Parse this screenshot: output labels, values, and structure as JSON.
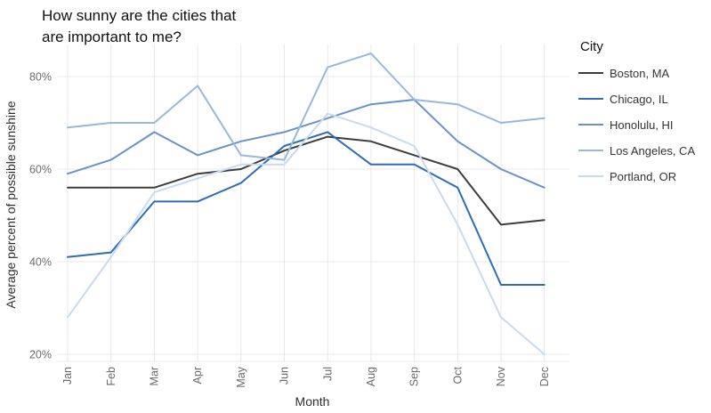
{
  "title": {
    "line1": "How sunny are the cities that",
    "line2": "are important to me?"
  },
  "legend": {
    "title": "City"
  },
  "chart_data": {
    "type": "line",
    "title": "How sunny are the cities that are important to me?",
    "xlabel": "Month",
    "ylabel": "Average percent of possible sunshine",
    "unit": "%",
    "categories": [
      "Jan",
      "Feb",
      "Mar",
      "Apr",
      "May",
      "Jun",
      "Jul",
      "Aug",
      "Sep",
      "Oct",
      "Nov",
      "Dec"
    ],
    "yticks": [
      20,
      40,
      60,
      80
    ],
    "ytick_labels": [
      "20%",
      "40%",
      "60%",
      "80%"
    ],
    "ylim": [
      18.5,
      87
    ],
    "grid": true,
    "legend_title": "City",
    "legend_position": "right",
    "series": [
      {
        "name": "Boston, MA",
        "color": "#3d3d3d",
        "values": [
          56,
          56,
          56,
          59,
          60,
          64,
          67,
          66,
          63,
          60,
          48,
          49
        ]
      },
      {
        "name": "Chicago, IL",
        "color": "#2e6db4",
        "values": [
          41,
          42,
          53,
          53,
          57,
          65,
          68,
          61,
          61,
          56,
          35,
          35
        ]
      },
      {
        "name": "Honolulu, HI",
        "color": "#6a92c8",
        "values": [
          59,
          62,
          68,
          63,
          66,
          68,
          71,
          74,
          75,
          66,
          60,
          56
        ]
      },
      {
        "name": "Los Angeles, CA",
        "color": "#97b7dc",
        "values": [
          69,
          70,
          70,
          78,
          63,
          62,
          82,
          85,
          75,
          74,
          70,
          71
        ]
      },
      {
        "name": "Portland, OR",
        "color": "#c9daee",
        "values": [
          28,
          41,
          55,
          58,
          61,
          61,
          72,
          69,
          65,
          48,
          28,
          20
        ]
      }
    ]
  }
}
